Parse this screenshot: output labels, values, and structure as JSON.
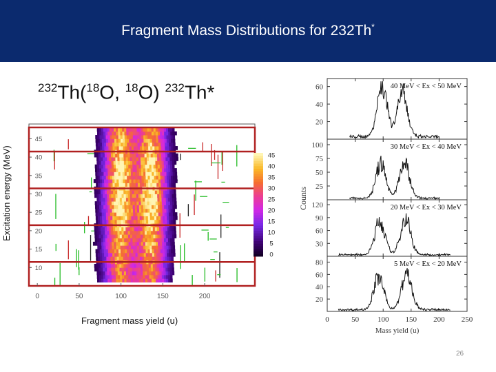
{
  "slide": {
    "title_main": "Fragment Mass Distributions for 232Th",
    "title_sup": "*",
    "reaction_parts": [
      "232",
      "Th(",
      "18",
      "O, ",
      "18",
      "O) ",
      "232",
      "Th*"
    ],
    "ylabel": "Excitation energy (MeV)",
    "xlabel": "Fragment mass yield (u)",
    "page_number": "26"
  },
  "colors": {
    "header_bg": "#0b2a6e",
    "box_red": "#b02020",
    "green_lines": "#22bb22"
  },
  "chart_data": [
    {
      "type": "heatmap",
      "x_ticks": [
        "0",
        "50",
        "100",
        "150",
        "200"
      ],
      "y_ticks": [
        "10",
        "15",
        "20",
        "25",
        "30",
        "35",
        "40",
        "45"
      ],
      "xlim": [
        -10,
        260
      ],
      "ylim": [
        5,
        49
      ],
      "colorbar_ticks": [
        "0",
        "5",
        "10",
        "15",
        "20",
        "25",
        "30",
        "35",
        "40",
        "45"
      ],
      "colorbar_range": [
        0,
        45
      ],
      "peaks": [
        {
          "mass": 97,
          "width": 12
        },
        {
          "mass": 135,
          "width": 12
        }
      ],
      "band_lines_ex": [
        10,
        20,
        30,
        40
      ]
    },
    {
      "type": "line",
      "xlabel": "Mass yield (u)",
      "ylabel": "Counts",
      "x_ticks": [
        "0",
        "50",
        "100",
        "150",
        "200",
        "250"
      ],
      "xlim": [
        0,
        250
      ],
      "panels": [
        {
          "label": "40 MeV < Ex < 50 MeV",
          "y_ticks": [
            "20",
            "40",
            "60"
          ],
          "ylim": [
            0,
            66
          ],
          "peaks": [
            {
              "mass": 98,
              "height": 58
            },
            {
              "mass": 134,
              "height": 50
            }
          ],
          "background": 3,
          "range": [
            40,
            200
          ]
        },
        {
          "label": "30 MeV < Ex < 40 MeV",
          "y_ticks": [
            "25",
            "50",
            "75",
            "100"
          ],
          "ylim": [
            0,
            105
          ],
          "peaks": [
            {
              "mass": 96,
              "height": 62
            },
            {
              "mass": 138,
              "height": 64
            }
          ],
          "background": 3,
          "range": [
            40,
            200
          ]
        },
        {
          "label": "20 MeV < Ex < 30 MeV",
          "y_ticks": [
            "30",
            "60",
            "90",
            "120"
          ],
          "ylim": [
            0,
            125
          ],
          "peaks": [
            {
              "mass": 94,
              "height": 78
            },
            {
              "mass": 140,
              "height": 84
            }
          ],
          "background": 4,
          "range": [
            20,
            220
          ]
        },
        {
          "label": "5 MeV < Ex < 20 MeV",
          "y_ticks": [
            "20",
            "40",
            "60",
            "80"
          ],
          "ylim": [
            0,
            85
          ],
          "peaks": [
            {
              "mass": 92,
              "height": 52
            },
            {
              "mass": 142,
              "height": 58
            }
          ],
          "background": 3,
          "range": [
            20,
            220
          ]
        }
      ]
    }
  ]
}
